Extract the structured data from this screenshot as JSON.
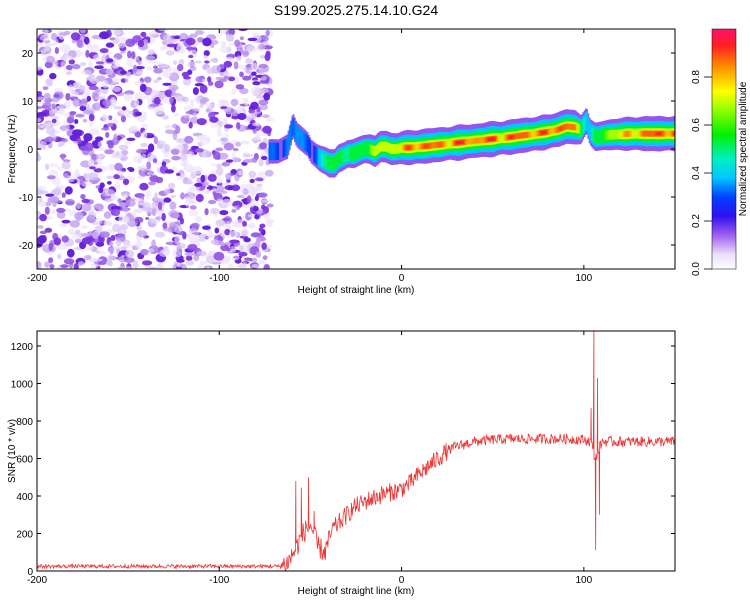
{
  "title": "S199.2025.275.14.10.G24",
  "chart_data": [
    {
      "type": "heatmap",
      "xlabel": "Height of straight line (km)",
      "ylabel": "Frequency (Hz)",
      "xlim": [
        -200,
        150
      ],
      "ylim": [
        -25,
        25
      ],
      "xticks": [
        -200,
        -100,
        0,
        100
      ],
      "yticks": [
        -20,
        -10,
        0,
        10,
        20
      ],
      "tick_labels_x": [
        "-200",
        "-100",
        "0",
        "100"
      ],
      "tick_labels_y": [
        "-20",
        "-10",
        "0",
        "10",
        "20"
      ],
      "noise_region_x": [
        -200,
        -72
      ],
      "ridge": {
        "x": [
          -73,
          -68,
          -63,
          -60,
          -58,
          -55,
          -52,
          -50,
          -47,
          -45,
          -42,
          -40,
          -37,
          -35,
          -32,
          -30,
          -27,
          -24,
          -21,
          -18,
          -15,
          -12,
          -9,
          -6,
          -3,
          0,
          5,
          10,
          15,
          20,
          25,
          30,
          35,
          40,
          45,
          50,
          55,
          60,
          65,
          70,
          75,
          80,
          85,
          90,
          95,
          98,
          101,
          103,
          106,
          110,
          115,
          120,
          125,
          130,
          135,
          140,
          145,
          150
        ],
        "freq_hz": [
          -0.5,
          -0.5,
          0.5,
          5.0,
          3.0,
          2.0,
          1.0,
          -0.5,
          -1.5,
          -2.0,
          -2.5,
          -3.0,
          -3.0,
          -2.0,
          -1.5,
          -1.0,
          -1.0,
          -0.5,
          0.0,
          0.0,
          -0.5,
          0.5,
          0.5,
          0.0,
          0.0,
          0.3,
          0.3,
          0.5,
          0.7,
          0.9,
          1.1,
          1.3,
          1.5,
          1.7,
          1.9,
          2.1,
          2.3,
          2.5,
          2.8,
          3.0,
          3.3,
          3.6,
          4.0,
          4.7,
          4.5,
          4.0,
          6.0,
          3.5,
          2.5,
          2.8,
          3.0,
          3.1,
          3.2,
          3.2,
          3.2,
          3.2,
          3.2,
          3.2
        ],
        "amplitude": [
          0.3,
          0.3,
          0.35,
          0.3,
          0.35,
          0.35,
          0.3,
          0.3,
          0.35,
          0.4,
          0.45,
          0.55,
          0.6,
          0.55,
          0.5,
          0.5,
          0.55,
          0.55,
          0.6,
          0.65,
          0.65,
          0.7,
          0.75,
          0.75,
          0.75,
          0.8,
          0.85,
          0.9,
          0.88,
          0.85,
          0.85,
          0.9,
          0.88,
          0.85,
          0.88,
          0.9,
          0.85,
          0.88,
          0.9,
          0.88,
          0.85,
          0.88,
          0.9,
          0.9,
          0.8,
          0.6,
          0.45,
          0.4,
          0.5,
          0.6,
          0.7,
          0.75,
          0.8,
          0.85,
          0.88,
          0.9,
          0.9,
          0.9
        ]
      },
      "colorbar": {
        "label": "Normalized spectral amplitude",
        "range": [
          0,
          1
        ],
        "ticks": [
          0.0,
          0.2,
          0.4,
          0.6,
          0.8
        ],
        "tick_labels": [
          "0.0",
          "0.2",
          "0.4",
          "0.6",
          "0.8"
        ]
      }
    },
    {
      "type": "line",
      "xlabel": "Height of straight line (km)",
      "ylabel": "SNR (10 * v/v)",
      "xlim": [
        -200,
        150
      ],
      "ylim": [
        0,
        1280
      ],
      "xticks": [
        -200,
        -100,
        0,
        100
      ],
      "yticks": [
        0,
        200,
        400,
        600,
        800,
        1000,
        1200
      ],
      "tick_labels_x": [
        "-200",
        "-100",
        "0",
        "100"
      ],
      "tick_labels_y": [
        "0",
        "200",
        "400",
        "600",
        "800",
        "1000",
        "1200"
      ],
      "color": "#ee3333",
      "trend": {
        "x": [
          -200,
          -100,
          -66,
          -62,
          -58,
          -54,
          -50,
          -46,
          -42,
          -38,
          -34,
          -30,
          -26,
          -22,
          -18,
          -14,
          -10,
          -6,
          -2,
          0,
          5,
          10,
          15,
          20,
          25,
          30,
          40,
          50,
          60,
          70,
          80,
          90,
          100,
          104,
          106,
          110,
          120,
          130,
          140,
          150
        ],
        "snr": [
          25,
          25,
          25,
          50,
          120,
          200,
          250,
          130,
          100,
          220,
          260,
          300,
          340,
          360,
          380,
          395,
          410,
          420,
          430,
          440,
          470,
          520,
          560,
          600,
          640,
          665,
          690,
          700,
          705,
          705,
          705,
          705,
          700,
          690,
          600,
          690,
          690,
          690,
          690,
          690
        ]
      },
      "spikes": [
        {
          "x": -58,
          "snr": 480
        },
        {
          "x": -55,
          "snr": 445
        },
        {
          "x": -51,
          "snr": 500
        },
        {
          "x": -48,
          "snr": 320
        },
        {
          "x": -44,
          "snr": 130
        },
        {
          "x": 104,
          "snr": 870
        },
        {
          "x": 105.5,
          "snr": 1280
        },
        {
          "x": 106.5,
          "snr": 110
        },
        {
          "x": 107.5,
          "snr": 1030
        },
        {
          "x": 108.5,
          "snr": 300
        }
      ]
    }
  ]
}
